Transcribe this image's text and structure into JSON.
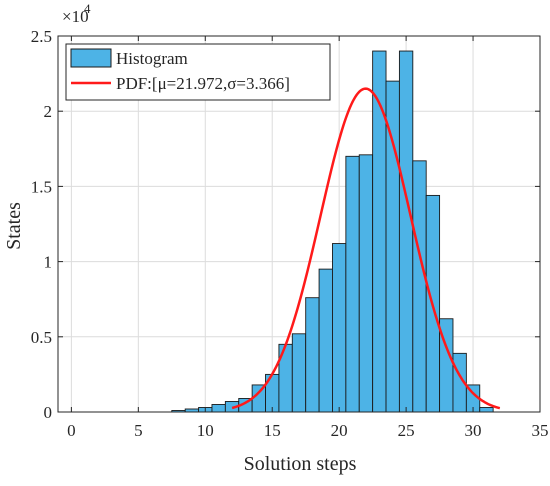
{
  "chart_data": {
    "type": "bar",
    "title": "",
    "xlabel": "Solution steps",
    "ylabel": "States",
    "y_exponent_label": "×10",
    "y_exponent_power": "4",
    "xlim": [
      -1,
      35
    ],
    "ylim": [
      0,
      25000
    ],
    "xticks": [
      0,
      5,
      10,
      15,
      20,
      25,
      30,
      35
    ],
    "yticks": [
      0,
      5000,
      10000,
      15000,
      20000,
      25000
    ],
    "ytick_labels": [
      "0",
      "0.5",
      "1",
      "1.5",
      "2",
      "2.5"
    ],
    "grid": true,
    "legend_position": "top-left",
    "bar_width": 1,
    "bar_color": "#4db3e6",
    "bar_edge_color": "#1a1a1a",
    "pdf_color": "#ff1a1a",
    "histogram": {
      "name": "Histogram",
      "x": [
        8,
        9,
        10,
        11,
        12,
        13,
        14,
        15,
        16,
        17,
        18,
        19,
        20,
        21,
        22,
        23,
        24,
        25,
        26,
        27,
        28,
        29,
        30,
        31
      ],
      "values": [
        100,
        200,
        300,
        500,
        700,
        900,
        1800,
        2500,
        4500,
        5200,
        7600,
        9500,
        11200,
        17000,
        17100,
        24000,
        22000,
        24000,
        16700,
        14400,
        6200,
        3900,
        1800,
        300
      ]
    },
    "pdf": {
      "name": "PDF:[μ=21.972,σ=3.366]",
      "mu": 21.972,
      "sigma": 3.366,
      "peak": 21500,
      "x_range": [
        12,
        32
      ]
    }
  }
}
